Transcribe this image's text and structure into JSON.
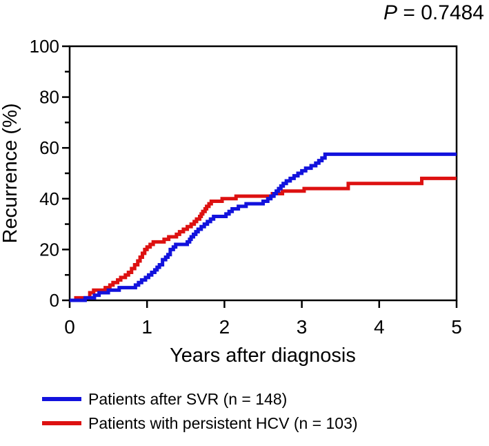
{
  "pvalue": {
    "symbol": "P",
    "text": " = 0.7484"
  },
  "chart_data": {
    "type": "line",
    "subtype": "kaplan-meier-step",
    "title": "P = 0.7484",
    "xlabel": "Years after diagnosis",
    "ylabel": "Recurrence (%)",
    "xlim": [
      0,
      5
    ],
    "ylim": [
      0,
      100
    ],
    "x_ticks": [
      0,
      1,
      2,
      3,
      4,
      5
    ],
    "y_ticks_major": [
      0,
      20,
      40,
      60,
      80,
      100
    ],
    "y_ticks_minor": [
      10,
      30,
      50,
      70,
      90
    ],
    "grid": false,
    "frame": true,
    "legend_position": "below-left",
    "axis_color": "#000000",
    "series": [
      {
        "name": "Patients after SVR (n = 148)",
        "id": "svr",
        "color": "#1212dd",
        "points": [
          [
            0,
            0
          ],
          [
            0.2,
            1
          ],
          [
            0.32,
            2
          ],
          [
            0.38,
            3
          ],
          [
            0.5,
            4
          ],
          [
            0.64,
            5
          ],
          [
            0.85,
            6
          ],
          [
            0.89,
            7
          ],
          [
            0.93,
            8
          ],
          [
            0.98,
            9
          ],
          [
            1.02,
            10
          ],
          [
            1.06,
            11
          ],
          [
            1.1,
            12
          ],
          [
            1.13,
            13
          ],
          [
            1.16,
            14
          ],
          [
            1.2,
            16
          ],
          [
            1.24,
            17
          ],
          [
            1.27,
            18
          ],
          [
            1.3,
            20
          ],
          [
            1.34,
            21
          ],
          [
            1.37,
            22
          ],
          [
            1.52,
            23
          ],
          [
            1.55,
            24
          ],
          [
            1.57,
            25
          ],
          [
            1.6,
            26
          ],
          [
            1.63,
            27
          ],
          [
            1.66,
            28
          ],
          [
            1.7,
            29
          ],
          [
            1.74,
            30
          ],
          [
            1.78,
            31
          ],
          [
            1.82,
            32
          ],
          [
            1.86,
            33
          ],
          [
            2.02,
            34
          ],
          [
            2.06,
            35
          ],
          [
            2.1,
            36
          ],
          [
            2.18,
            37
          ],
          [
            2.28,
            38
          ],
          [
            2.5,
            39
          ],
          [
            2.56,
            40
          ],
          [
            2.6,
            41
          ],
          [
            2.64,
            42
          ],
          [
            2.67,
            43
          ],
          [
            2.7,
            44
          ],
          [
            2.73,
            45
          ],
          [
            2.76,
            46
          ],
          [
            2.8,
            47
          ],
          [
            2.85,
            48
          ],
          [
            2.9,
            49
          ],
          [
            2.95,
            50
          ],
          [
            3.0,
            51
          ],
          [
            3.05,
            52
          ],
          [
            3.12,
            53
          ],
          [
            3.18,
            54
          ],
          [
            3.22,
            55
          ],
          [
            3.26,
            56
          ],
          [
            3.3,
            57.5
          ],
          [
            5.0,
            57.5
          ]
        ]
      },
      {
        "name": "Patients with persistent HCV (n = 103)",
        "id": "hcv",
        "color": "#dd1111",
        "points": [
          [
            0,
            0
          ],
          [
            0.08,
            1
          ],
          [
            0.26,
            3
          ],
          [
            0.31,
            4
          ],
          [
            0.46,
            5
          ],
          [
            0.52,
            6
          ],
          [
            0.56,
            7
          ],
          [
            0.62,
            8
          ],
          [
            0.66,
            9
          ],
          [
            0.72,
            10
          ],
          [
            0.76,
            11
          ],
          [
            0.8,
            12.5
          ],
          [
            0.84,
            14
          ],
          [
            0.88,
            15.5
          ],
          [
            0.91,
            17
          ],
          [
            0.94,
            18.5
          ],
          [
            0.97,
            20
          ],
          [
            1.0,
            21
          ],
          [
            1.04,
            22
          ],
          [
            1.08,
            23
          ],
          [
            1.22,
            24
          ],
          [
            1.28,
            25
          ],
          [
            1.38,
            26
          ],
          [
            1.42,
            27
          ],
          [
            1.47,
            28
          ],
          [
            1.52,
            29
          ],
          [
            1.57,
            30
          ],
          [
            1.61,
            31
          ],
          [
            1.64,
            32
          ],
          [
            1.68,
            33
          ],
          [
            1.7,
            34
          ],
          [
            1.72,
            35
          ],
          [
            1.75,
            36
          ],
          [
            1.77,
            37
          ],
          [
            1.8,
            38
          ],
          [
            1.83,
            39
          ],
          [
            1.97,
            40
          ],
          [
            2.15,
            41
          ],
          [
            2.62,
            42
          ],
          [
            2.75,
            43
          ],
          [
            3.03,
            44
          ],
          [
            3.6,
            46
          ],
          [
            4.55,
            48
          ],
          [
            5.0,
            48
          ]
        ]
      }
    ]
  }
}
